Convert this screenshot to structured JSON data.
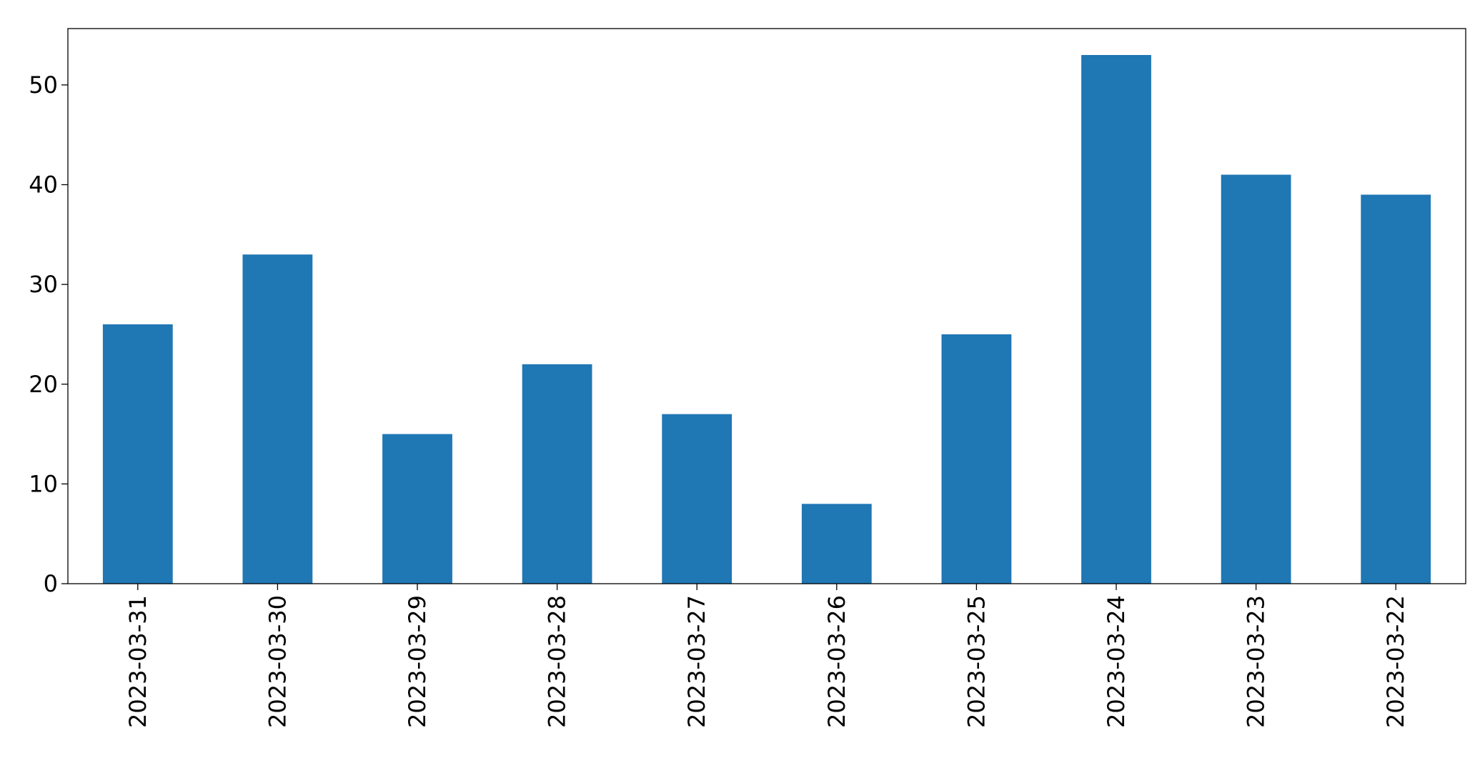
{
  "chart_data": {
    "type": "bar",
    "categories": [
      "2023-03-31",
      "2023-03-30",
      "2023-03-29",
      "2023-03-28",
      "2023-03-27",
      "2023-03-26",
      "2023-03-25",
      "2023-03-24",
      "2023-03-23",
      "2023-03-22"
    ],
    "values": [
      26,
      33,
      15,
      22,
      17,
      8,
      25,
      53,
      41,
      39
    ],
    "color": "#1f77b4",
    "ylim": [
      0,
      55.65
    ],
    "yticks": [
      0,
      10,
      20,
      30,
      40,
      50
    ],
    "grid": false
  }
}
